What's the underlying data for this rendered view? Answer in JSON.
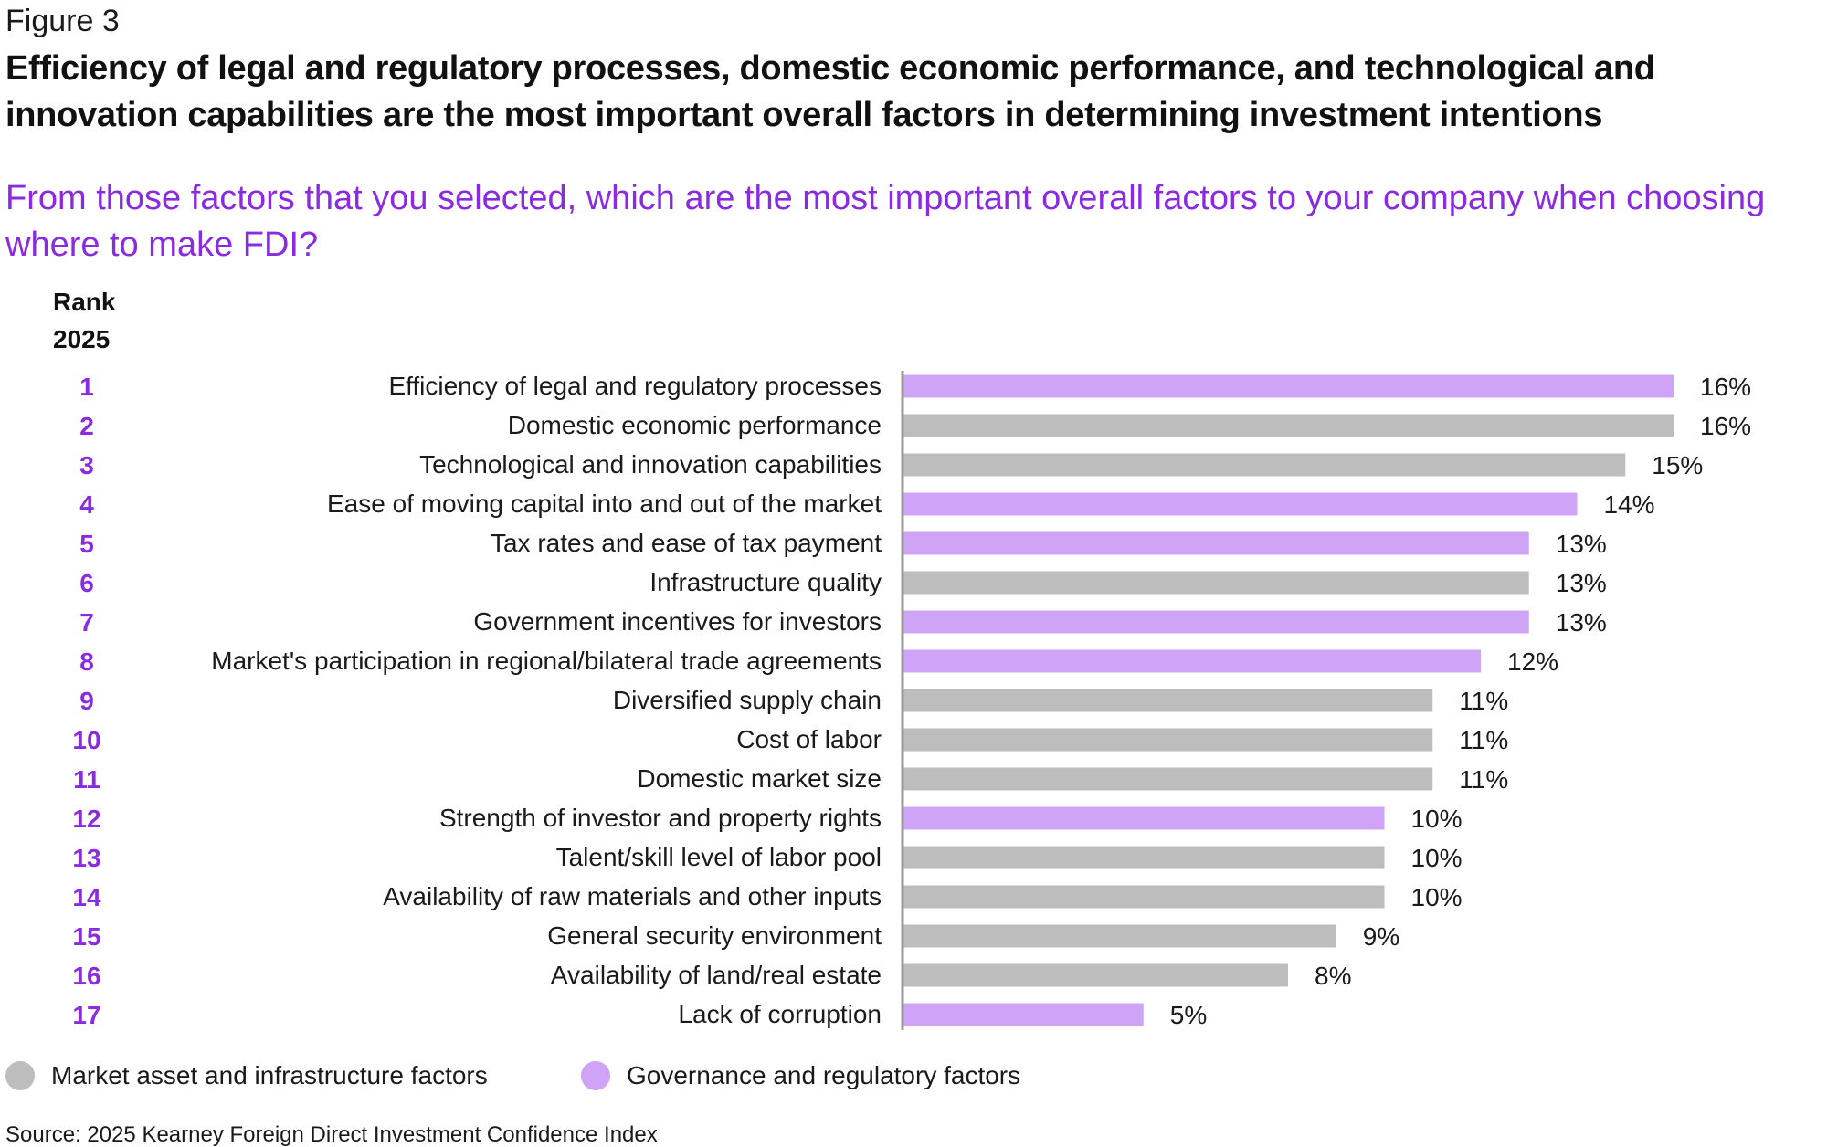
{
  "figure_label": "Figure 3",
  "title": "Efficiency of legal and regulatory processes, domestic economic performance, and technological and innovation capabilities are the most important overall factors in determining investment intentions",
  "question": "From those factors that you selected, which are the most important overall factors to your company when choosing where to make FDI?",
  "rank_header_line1": "Rank",
  "rank_header_line2": "2025",
  "source": "Source: 2025 Kearney Foreign Direct Investment Confidence Index",
  "colors": {
    "market": "#bdbdbd",
    "governance": "#cfa3f5",
    "rank_text": "#8a2be2",
    "question_text": "#8a2be2",
    "axis": "#999999"
  },
  "legend": [
    {
      "label": "Market asset and infrastructure factors",
      "group": "market"
    },
    {
      "label": "Governance and regulatory factors",
      "group": "governance"
    }
  ],
  "chart_data": {
    "type": "bar",
    "orientation": "horizontal",
    "value_unit": "%",
    "xlim": [
      0,
      16
    ],
    "grid": false,
    "legend_position": "bottom-left",
    "categories": [
      {
        "rank": "1",
        "label": "Efficiency of legal and regulatory processes",
        "value": 16,
        "value_label": "16%",
        "group": "governance"
      },
      {
        "rank": "2",
        "label": "Domestic economic performance",
        "value": 16,
        "value_label": "16%",
        "group": "market"
      },
      {
        "rank": "3",
        "label": "Technological and innovation capabilities",
        "value": 15,
        "value_label": "15%",
        "group": "market"
      },
      {
        "rank": "4",
        "label": "Ease of moving capital into and out of the market",
        "value": 14,
        "value_label": "14%",
        "group": "governance"
      },
      {
        "rank": "5",
        "label": "Tax rates and ease of tax payment",
        "value": 13,
        "value_label": "13%",
        "group": "governance"
      },
      {
        "rank": "6",
        "label": "Infrastructure quality",
        "value": 13,
        "value_label": "13%",
        "group": "market"
      },
      {
        "rank": "7",
        "label": "Government incentives for investors",
        "value": 13,
        "value_label": "13%",
        "group": "governance"
      },
      {
        "rank": "8",
        "label": "Market's participation in regional/bilateral trade agreements",
        "value": 12,
        "value_label": "12%",
        "group": "governance"
      },
      {
        "rank": "9",
        "label": "Diversified supply chain",
        "value": 11,
        "value_label": "11%",
        "group": "market"
      },
      {
        "rank": "10",
        "label": "Cost of labor",
        "value": 11,
        "value_label": "11%",
        "group": "market"
      },
      {
        "rank": "11",
        "label": "Domestic market size",
        "value": 11,
        "value_label": "11%",
        "group": "market"
      },
      {
        "rank": "12",
        "label": "Strength of investor and property rights",
        "value": 10,
        "value_label": "10%",
        "group": "governance"
      },
      {
        "rank": "13",
        "label": "Talent/skill level of labor pool",
        "value": 10,
        "value_label": "10%",
        "group": "market"
      },
      {
        "rank": "14",
        "label": "Availability of raw materials and other inputs",
        "value": 10,
        "value_label": "10%",
        "group": "market"
      },
      {
        "rank": "15",
        "label": "General security environment",
        "value": 9,
        "value_label": "9%",
        "group": "market"
      },
      {
        "rank": "16",
        "label": "Availability of land/real estate",
        "value": 8,
        "value_label": "8%",
        "group": "market"
      },
      {
        "rank": "17",
        "label": "Lack of corruption",
        "value": 5,
        "value_label": "5%",
        "group": "governance"
      }
    ]
  }
}
